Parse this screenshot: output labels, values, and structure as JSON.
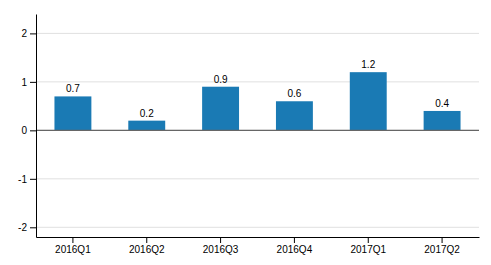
{
  "chart_data": {
    "type": "bar",
    "categories": [
      "2016Q1",
      "2016Q2",
      "2016Q3",
      "2016Q4",
      "2017Q1",
      "2017Q2"
    ],
    "values": [
      0.7,
      0.2,
      0.9,
      0.6,
      1.2,
      0.4
    ],
    "color": "#1a7ab4",
    "ylim": [
      -2.2,
      2.4
    ],
    "yticks": [
      -2,
      -1,
      0,
      1,
      2
    ],
    "grid": true,
    "data_labels": true
  }
}
